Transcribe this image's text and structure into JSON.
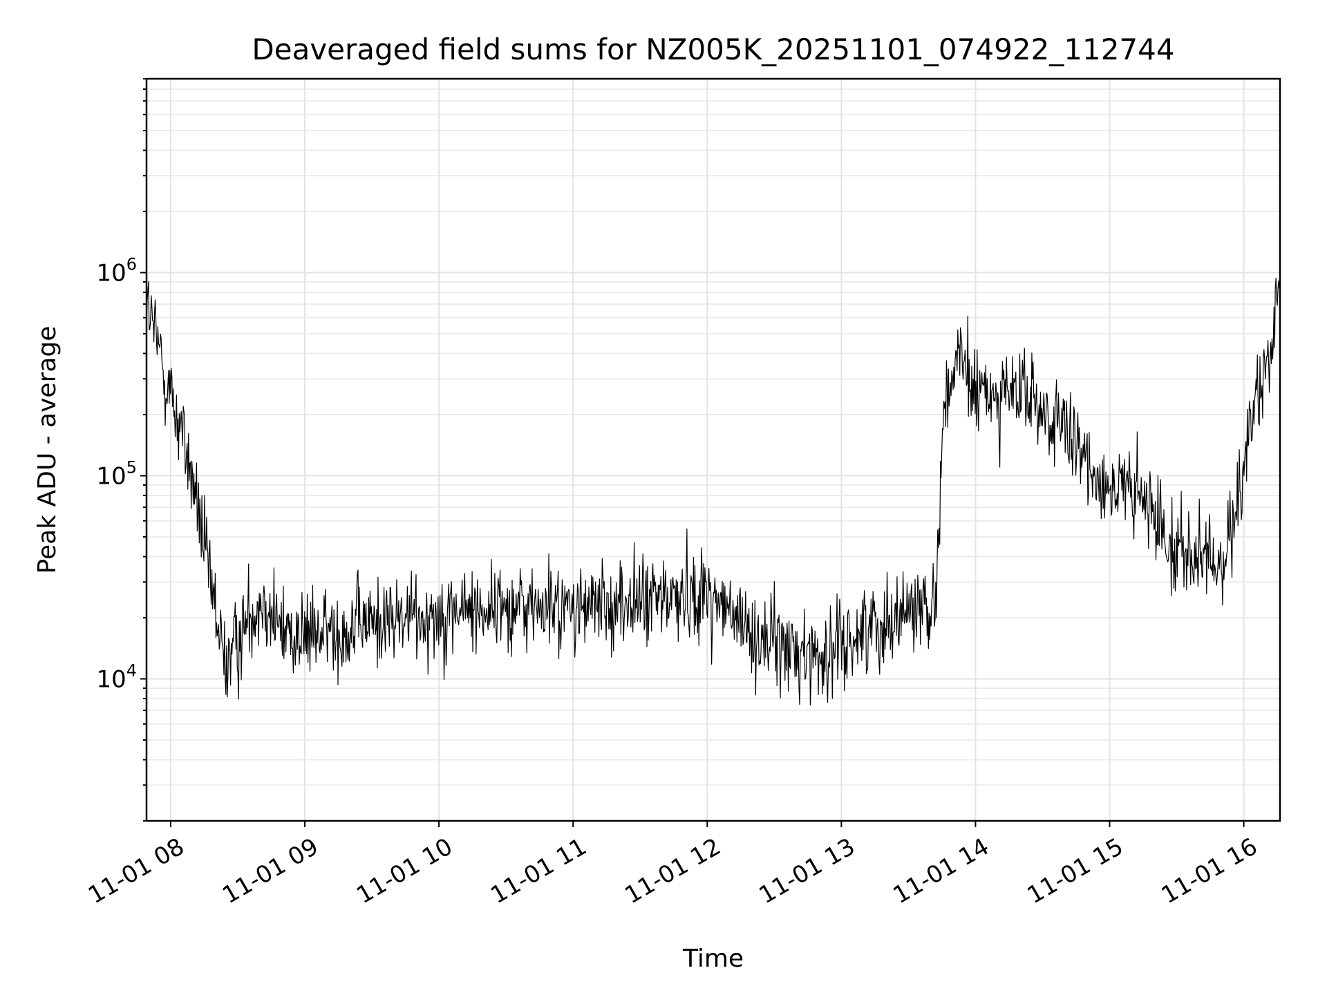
{
  "chart_data": {
    "type": "line",
    "title": "Deaveraged field sums for NZ005K_20251101_074922_112744",
    "xlabel": "Time",
    "ylabel": "Peak ADU - average",
    "yscale": "log",
    "grid": true,
    "x_range_hours": [
      7.82,
      16.27
    ],
    "ylim": [
      2000,
      9000000
    ],
    "x_ticks": [
      {
        "value": 8,
        "label": "11-01 08"
      },
      {
        "value": 9,
        "label": "11-01 09"
      },
      {
        "value": 10,
        "label": "11-01 10"
      },
      {
        "value": 11,
        "label": "11-01 11"
      },
      {
        "value": 12,
        "label": "11-01 12"
      },
      {
        "value": 13,
        "label": "11-01 13"
      },
      {
        "value": 14,
        "label": "11-01 14"
      },
      {
        "value": 15,
        "label": "11-01 15"
      },
      {
        "value": 16,
        "label": "11-01 16"
      }
    ],
    "y_ticks": [
      {
        "value": 10000,
        "base": "10",
        "exp": "4"
      },
      {
        "value": 100000,
        "base": "10",
        "exp": "5"
      },
      {
        "value": 1000000,
        "base": "10",
        "exp": "6"
      }
    ],
    "series": [
      {
        "name": "Peak ADU - average",
        "color": "#000000",
        "x_hours": [
          7.82,
          7.9,
          8.0,
          8.1,
          8.2,
          8.3,
          8.4,
          8.5,
          8.6,
          8.7,
          8.8,
          9.0,
          9.5,
          10.0,
          10.5,
          11.0,
          11.5,
          12.0,
          12.3,
          12.6,
          12.9,
          13.2,
          13.5,
          13.7,
          13.75,
          13.8,
          13.9,
          14.0,
          14.2,
          14.4,
          14.6,
          14.8,
          15.0,
          15.2,
          15.4,
          15.6,
          15.8,
          15.9,
          16.0,
          16.1,
          16.2,
          16.27
        ],
        "y_trend": [
          700000,
          450000,
          250000,
          150000,
          70000,
          28000,
          12000,
          15000,
          22000,
          25000,
          18000,
          16000,
          19000,
          21000,
          23000,
          22000,
          24000,
          27000,
          17000,
          14000,
          13000,
          18000,
          22000,
          24000,
          150000,
          300000,
          350000,
          250000,
          260000,
          240000,
          180000,
          120000,
          90000,
          80000,
          55000,
          40000,
          35000,
          50000,
          120000,
          250000,
          350000,
          750000
        ],
        "noise_dex": 0.2,
        "samples": 1700
      }
    ]
  }
}
